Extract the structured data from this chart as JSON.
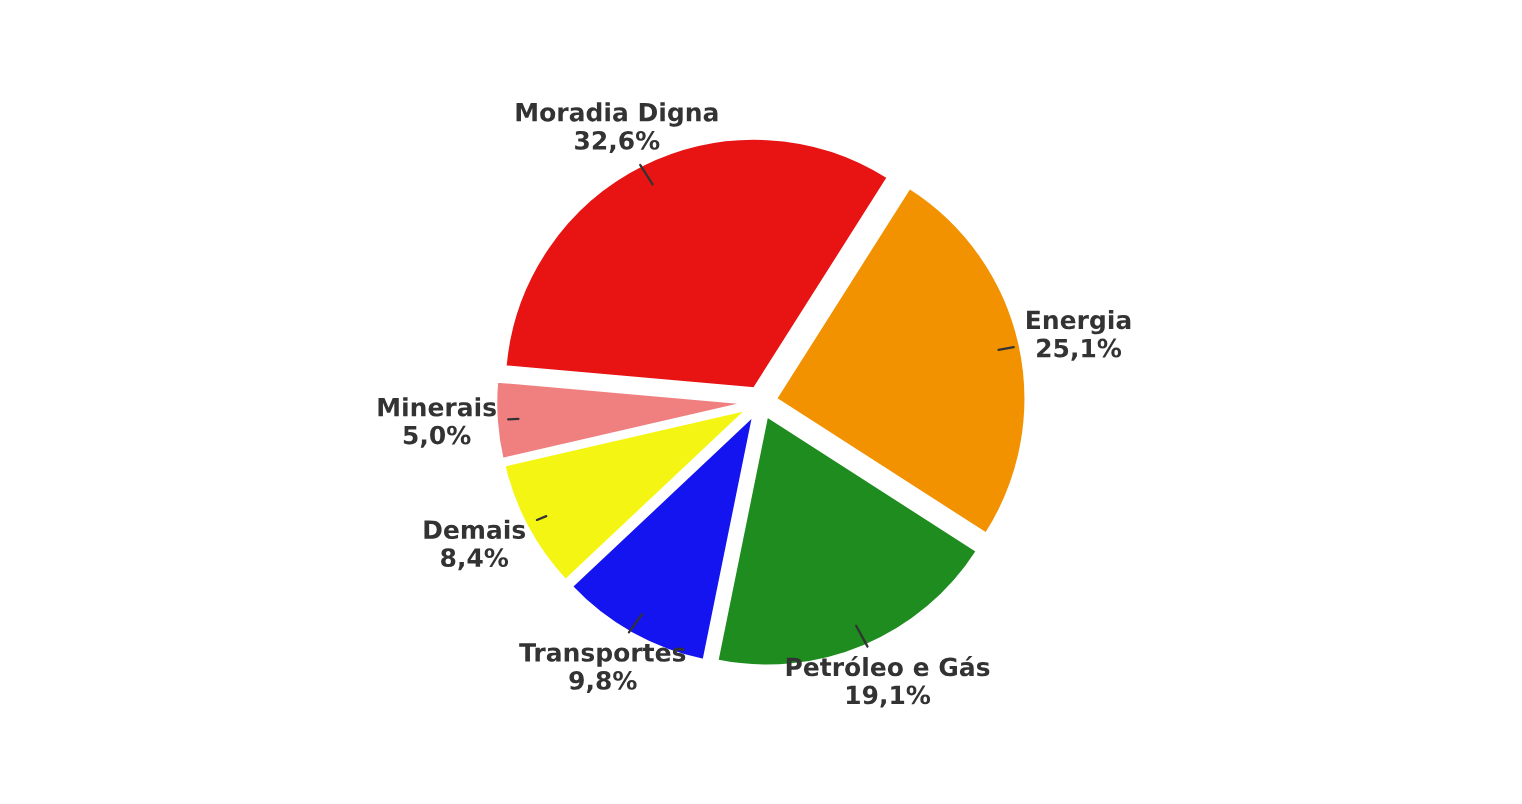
{
  "chart_data": {
    "type": "pie",
    "categories": [
      "Moradia Digna",
      "Energia",
      "Petróleo e Gás",
      "Transportes",
      "Demais",
      "Minerais"
    ],
    "values": [
      32.6,
      25.1,
      19.1,
      9.8,
      8.4,
      5.0
    ],
    "value_labels": [
      "32,6%",
      "25,1%",
      "19,1%",
      "9,8%",
      "8,4%",
      "5,0%"
    ],
    "colors": [
      "#e81414",
      "#f39200",
      "#1e8c1e",
      "#1414f0",
      "#f5f514",
      "#f08080"
    ]
  }
}
